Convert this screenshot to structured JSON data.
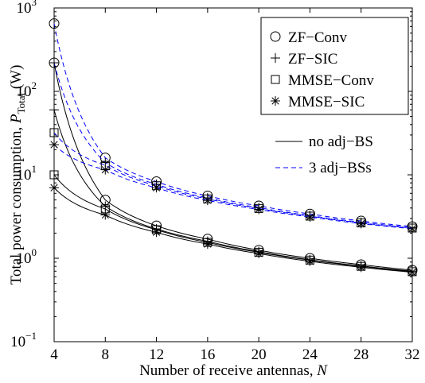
{
  "chart_data": {
    "type": "line",
    "xlabel_text": "Number of receive antennas, ",
    "xlabel_symbol": "N",
    "ylabel_text": "Total power consumption, ",
    "ylabel_symbol": "P",
    "ylabel_subscript": "Total",
    "ylabel_unit": " (W)",
    "xscale": "linear",
    "yscale": "log",
    "xlim": [
      4,
      32
    ],
    "ylim": [
      0.1,
      1000
    ],
    "x_ticks": [
      4,
      8,
      12,
      16,
      20,
      24,
      28,
      32
    ],
    "y_ticks": [
      {
        "value": 0.1,
        "base": "10",
        "exp": "−1"
      },
      {
        "value": 1,
        "base": "10",
        "exp": "0"
      },
      {
        "value": 10,
        "base": "10",
        "exp": "1"
      },
      {
        "value": 100,
        "base": "10",
        "exp": "2"
      },
      {
        "value": 1000,
        "base": "10",
        "exp": "3"
      }
    ],
    "grid": false,
    "legend_markers": [
      {
        "label": "ZF−Conv",
        "marker": "circle"
      },
      {
        "label": "ZF−SIC",
        "marker": "plus"
      },
      {
        "label": "MMSE−Conv",
        "marker": "square"
      },
      {
        "label": "MMSE−SIC",
        "marker": "star"
      }
    ],
    "legend_lines": [
      {
        "label": "no adj−BS",
        "style": "solid",
        "color": "#000000"
      },
      {
        "label": "3 adj−BSs",
        "style": "dashed",
        "color": "#0000ff"
      }
    ],
    "legend_placement": "top-right",
    "x": [
      4,
      8,
      12,
      16,
      20,
      24,
      28,
      32
    ],
    "series": [
      {
        "scheme": "ZF−Conv",
        "scenario": "no adj−BS",
        "marker": "circle",
        "style": "solid",
        "color": "#000000",
        "values": [
          220,
          5.0,
          2.45,
          1.7,
          1.25,
          1.0,
          0.84,
          0.72
        ]
      },
      {
        "scheme": "ZF−SIC",
        "scenario": "no adj−BS",
        "marker": "plus",
        "style": "solid",
        "color": "#000000",
        "values": [
          60,
          4.2,
          2.25,
          1.6,
          1.2,
          0.96,
          0.81,
          0.7
        ]
      },
      {
        "scheme": "MMSE−Conv",
        "scenario": "no adj−BS",
        "marker": "square",
        "style": "solid",
        "color": "#000000",
        "values": [
          10,
          3.9,
          2.2,
          1.55,
          1.18,
          0.95,
          0.8,
          0.69
        ]
      },
      {
        "scheme": "MMSE−SIC",
        "scenario": "no adj−BS",
        "marker": "star",
        "style": "solid",
        "color": "#000000",
        "values": [
          7,
          3.3,
          2.05,
          1.48,
          1.14,
          0.92,
          0.78,
          0.68
        ]
      },
      {
        "scheme": "ZF−Conv",
        "scenario": "3 adj−BSs",
        "marker": "circle",
        "style": "dashed",
        "color": "#0000ff",
        "values": [
          650,
          16,
          8.3,
          5.6,
          4.25,
          3.4,
          2.8,
          2.4
        ]
      },
      {
        "scheme": "ZF−SIC",
        "scenario": "3 adj−BSs",
        "marker": "plus",
        "style": "dashed",
        "color": "#0000ff",
        "values": [
          220,
          14,
          7.7,
          5.3,
          4.05,
          3.25,
          2.7,
          2.33
        ]
      },
      {
        "scheme": "MMSE−Conv",
        "scenario": "3 adj−BSs",
        "marker": "square",
        "style": "dashed",
        "color": "#0000ff",
        "values": [
          32,
          13,
          7.4,
          5.15,
          3.95,
          3.2,
          2.65,
          2.3
        ]
      },
      {
        "scheme": "MMSE−SIC",
        "scenario": "3 adj−BSs",
        "marker": "star",
        "style": "dashed",
        "color": "#0000ff",
        "values": [
          23,
          11.5,
          7.0,
          4.95,
          3.85,
          3.12,
          2.6,
          2.26
        ]
      }
    ]
  }
}
